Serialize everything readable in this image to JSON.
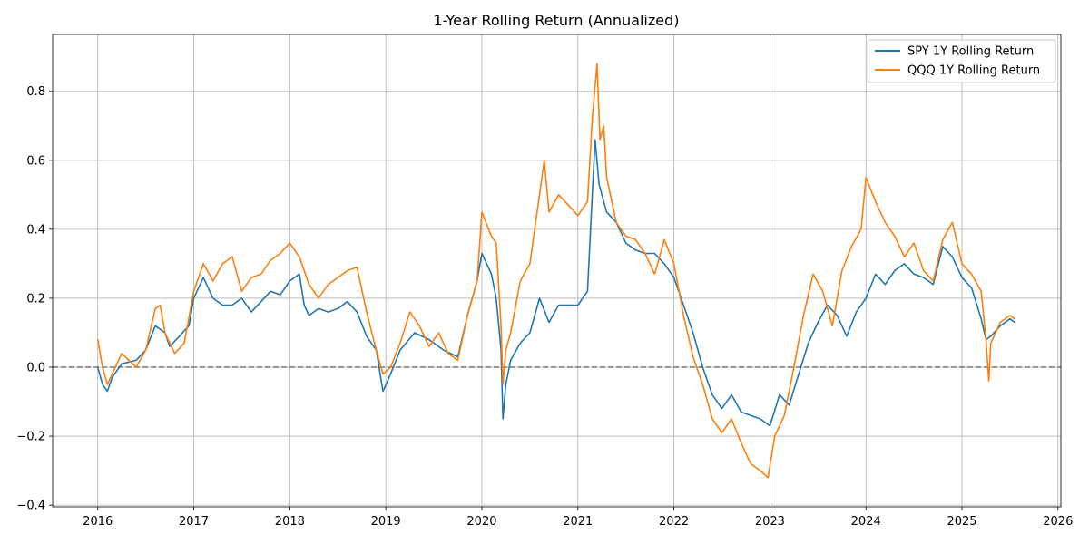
{
  "chart_data": {
    "type": "line",
    "title": "1-Year Rolling Return (Annualized)",
    "xlabel": "",
    "ylabel": "",
    "xlim": [
      2015.53,
      2026.03
    ],
    "ylim": [
      -0.405,
      0.965
    ],
    "x_ticks": [
      2016,
      2017,
      2018,
      2019,
      2020,
      2021,
      2022,
      2023,
      2024,
      2025,
      2026
    ],
    "x_tick_labels": [
      "2016",
      "2017",
      "2018",
      "2019",
      "2020",
      "2021",
      "2022",
      "2023",
      "2024",
      "2025",
      "2026"
    ],
    "y_ticks": [
      -0.4,
      -0.2,
      0.0,
      0.2,
      0.4,
      0.6,
      0.8
    ],
    "y_tick_labels": [
      "−0.4",
      "−0.2",
      "0.0",
      "0.2",
      "0.4",
      "0.6",
      "0.8"
    ],
    "grid": true,
    "legend_position": "top-right",
    "reference_line": {
      "y": 0.0,
      "style": "dashed",
      "color": "#808080"
    },
    "series": [
      {
        "name": "SPY 1Y Rolling Return",
        "color": "#1f77b4",
        "x": [
          2016.0,
          2016.05,
          2016.1,
          2016.15,
          2016.25,
          2016.4,
          2016.5,
          2016.6,
          2016.7,
          2016.75,
          2016.85,
          2016.95,
          2017.0,
          2017.1,
          2017.2,
          2017.3,
          2017.4,
          2017.5,
          2017.6,
          2017.7,
          2017.8,
          2017.9,
          2018.0,
          2018.1,
          2018.15,
          2018.2,
          2018.3,
          2018.4,
          2018.5,
          2018.6,
          2018.7,
          2018.8,
          2018.9,
          2018.97,
          2019.05,
          2019.15,
          2019.3,
          2019.45,
          2019.6,
          2019.75,
          2019.85,
          2019.95,
          2020.0,
          2020.1,
          2020.15,
          2020.2,
          2020.22,
          2020.25,
          2020.3,
          2020.4,
          2020.5,
          2020.6,
          2020.7,
          2020.8,
          2020.9,
          2021.0,
          2021.1,
          2021.15,
          2021.18,
          2021.22,
          2021.3,
          2021.4,
          2021.5,
          2021.6,
          2021.7,
          2021.8,
          2021.9,
          2022.0,
          2022.1,
          2022.2,
          2022.3,
          2022.4,
          2022.5,
          2022.6,
          2022.7,
          2022.8,
          2022.9,
          2023.0,
          2023.1,
          2023.2,
          2023.3,
          2023.4,
          2023.5,
          2023.6,
          2023.7,
          2023.8,
          2023.9,
          2024.0,
          2024.1,
          2024.2,
          2024.3,
          2024.4,
          2024.5,
          2024.6,
          2024.7,
          2024.8,
          2024.9,
          2025.0,
          2025.1,
          2025.2,
          2025.25,
          2025.3,
          2025.4,
          2025.5,
          2025.55
        ],
        "y": [
          0.0,
          -0.05,
          -0.07,
          -0.03,
          0.01,
          0.02,
          0.05,
          0.12,
          0.1,
          0.06,
          0.09,
          0.12,
          0.2,
          0.26,
          0.2,
          0.18,
          0.18,
          0.2,
          0.16,
          0.19,
          0.22,
          0.21,
          0.25,
          0.27,
          0.18,
          0.15,
          0.17,
          0.16,
          0.17,
          0.19,
          0.16,
          0.09,
          0.05,
          -0.07,
          -0.02,
          0.05,
          0.1,
          0.08,
          0.05,
          0.03,
          0.15,
          0.25,
          0.33,
          0.27,
          0.2,
          0.05,
          -0.15,
          -0.05,
          0.02,
          0.07,
          0.1,
          0.2,
          0.13,
          0.18,
          0.18,
          0.18,
          0.22,
          0.5,
          0.66,
          0.53,
          0.45,
          0.42,
          0.36,
          0.34,
          0.33,
          0.33,
          0.3,
          0.26,
          0.18,
          0.1,
          0.0,
          -0.08,
          -0.12,
          -0.08,
          -0.13,
          -0.14,
          -0.15,
          -0.17,
          -0.08,
          -0.11,
          -0.02,
          0.07,
          0.13,
          0.18,
          0.15,
          0.09,
          0.16,
          0.2,
          0.27,
          0.24,
          0.28,
          0.3,
          0.27,
          0.26,
          0.24,
          0.35,
          0.32,
          0.26,
          0.23,
          0.14,
          0.08,
          0.09,
          0.12,
          0.14,
          0.13
        ]
      },
      {
        "name": "QQQ 1Y Rolling Return",
        "color": "#ff7f0e",
        "x": [
          2016.0,
          2016.05,
          2016.1,
          2016.15,
          2016.25,
          2016.4,
          2016.5,
          2016.6,
          2016.65,
          2016.7,
          2016.8,
          2016.9,
          2017.0,
          2017.1,
          2017.2,
          2017.3,
          2017.4,
          2017.5,
          2017.6,
          2017.7,
          2017.8,
          2017.9,
          2018.0,
          2018.1,
          2018.2,
          2018.3,
          2018.4,
          2018.5,
          2018.6,
          2018.7,
          2018.8,
          2018.9,
          2018.97,
          2019.05,
          2019.15,
          2019.25,
          2019.35,
          2019.45,
          2019.55,
          2019.65,
          2019.75,
          2019.85,
          2019.95,
          2020.0,
          2020.1,
          2020.15,
          2020.2,
          2020.22,
          2020.25,
          2020.3,
          2020.4,
          2020.5,
          2020.6,
          2020.65,
          2020.7,
          2020.8,
          2020.9,
          2021.0,
          2021.1,
          2021.15,
          2021.2,
          2021.23,
          2021.27,
          2021.3,
          2021.4,
          2021.5,
          2021.6,
          2021.7,
          2021.8,
          2021.9,
          2022.0,
          2022.1,
          2022.2,
          2022.3,
          2022.4,
          2022.5,
          2022.6,
          2022.7,
          2022.8,
          2022.9,
          2022.98,
          2023.05,
          2023.15,
          2023.25,
          2023.35,
          2023.45,
          2023.55,
          2023.65,
          2023.75,
          2023.85,
          2023.95,
          2024.0,
          2024.1,
          2024.2,
          2024.3,
          2024.4,
          2024.5,
          2024.6,
          2024.7,
          2024.8,
          2024.9,
          2025.0,
          2025.1,
          2025.2,
          2025.25,
          2025.28,
          2025.3,
          2025.4,
          2025.5,
          2025.55
        ],
        "y": [
          0.08,
          0.0,
          -0.05,
          -0.02,
          0.04,
          0.0,
          0.05,
          0.17,
          0.18,
          0.1,
          0.04,
          0.07,
          0.22,
          0.3,
          0.25,
          0.3,
          0.32,
          0.22,
          0.26,
          0.27,
          0.31,
          0.33,
          0.36,
          0.32,
          0.24,
          0.2,
          0.24,
          0.26,
          0.28,
          0.29,
          0.16,
          0.05,
          -0.02,
          0.0,
          0.07,
          0.16,
          0.12,
          0.06,
          0.1,
          0.04,
          0.02,
          0.15,
          0.25,
          0.45,
          0.38,
          0.36,
          0.12,
          -0.05,
          0.05,
          0.1,
          0.25,
          0.3,
          0.5,
          0.6,
          0.45,
          0.5,
          0.47,
          0.44,
          0.48,
          0.72,
          0.88,
          0.66,
          0.7,
          0.55,
          0.42,
          0.38,
          0.37,
          0.33,
          0.27,
          0.37,
          0.3,
          0.15,
          0.03,
          -0.05,
          -0.15,
          -0.19,
          -0.15,
          -0.22,
          -0.28,
          -0.3,
          -0.32,
          -0.2,
          -0.14,
          0.0,
          0.15,
          0.27,
          0.22,
          0.12,
          0.28,
          0.35,
          0.4,
          0.55,
          0.48,
          0.42,
          0.38,
          0.32,
          0.36,
          0.28,
          0.25,
          0.37,
          0.42,
          0.3,
          0.27,
          0.22,
          0.08,
          -0.04,
          0.07,
          0.13,
          0.15,
          0.14
        ]
      }
    ]
  }
}
